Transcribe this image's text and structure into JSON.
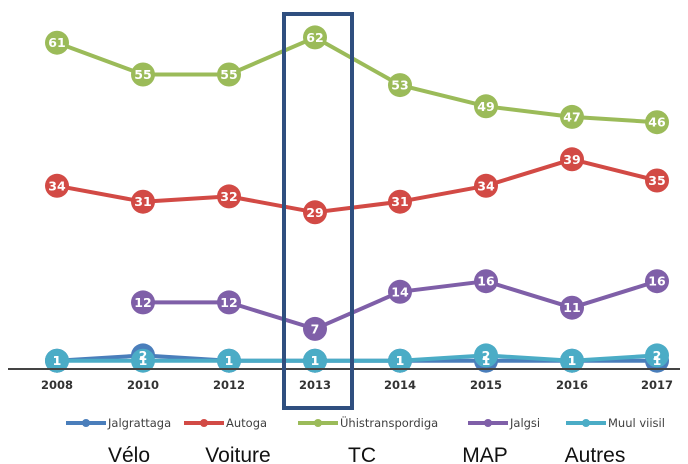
{
  "chart_data": {
    "type": "line",
    "x": [
      "2008",
      "2010",
      "2012",
      "2013",
      "2014",
      "2015",
      "2016",
      "2017"
    ],
    "series": [
      {
        "name": "Jalgrattaga",
        "color": "#4a7ebb",
        "values": [
          1,
          2,
          1,
          1,
          1,
          1,
          1,
          1
        ]
      },
      {
        "name": "Autoga",
        "color": "#d24a45",
        "values": [
          34,
          31,
          32,
          29,
          31,
          34,
          39,
          35
        ]
      },
      {
        "name": "Ühistranspordiga",
        "color": "#9bbb59",
        "values": [
          61,
          55,
          55,
          62,
          53,
          49,
          47,
          46
        ]
      },
      {
        "name": "Jalgsi",
        "color": "#7f5fa8",
        "values": [
          null,
          12,
          12,
          7,
          14,
          16,
          11,
          16
        ]
      },
      {
        "name": "Muul viisil",
        "color": "#4bacc6",
        "values": [
          1,
          1,
          1,
          1,
          1,
          2,
          1,
          2
        ]
      }
    ],
    "highlight_category": "2013",
    "highlight_color": "#2f4f7f",
    "legend_position": "bottom",
    "grid": false
  },
  "annotations": [
    "Vélo",
    "Voiture",
    "TC",
    "MAP",
    "Autres"
  ]
}
